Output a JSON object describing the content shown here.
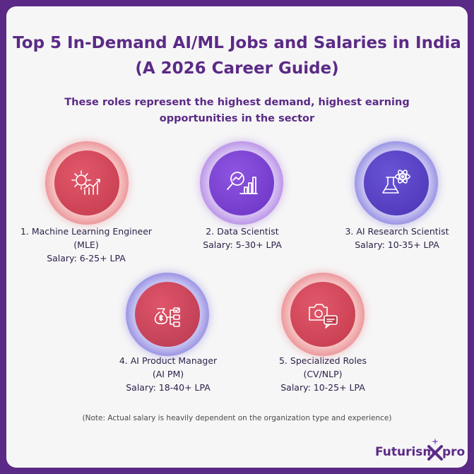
{
  "header": {
    "title_line1": "Top 5 In-Demand AI/ML Jobs and Salaries in India",
    "title_line2": "(A 2026 Career Guide)",
    "subtitle_line1": "These roles represent the highest demand, highest earning",
    "subtitle_line2": "opportunities in the sector"
  },
  "jobs": [
    {
      "title_line1": "1. Machine Learning Engineer",
      "title_line2": "(MLE)",
      "salary": "Salary: 6-25+ LPA",
      "icon": "gear-chart-icon",
      "color": "#d94a5c"
    },
    {
      "title_line1": "2. Data Scientist",
      "salary": "Salary: 5-30+ LPA",
      "icon": "magnifier-chart-icon",
      "color": "#7a42d6"
    },
    {
      "title_line1": "3. AI Research Scientist",
      "salary": "Salary: 10-35+ LPA",
      "icon": "flask-atom-icon",
      "color": "#5a44cc"
    },
    {
      "title_line1": "4. AI Product Manager",
      "title_line2": "(AI PM)",
      "salary": "Salary: 18-40+ LPA",
      "icon": "money-bag-tasks-icon",
      "color": "#d94a5c"
    },
    {
      "title_line1": "5. Specialized Roles",
      "title_line2": "(CV/NLP)",
      "salary": "Salary: 10-25+ LPA",
      "icon": "camera-chat-icon",
      "color": "#d94a5c"
    }
  ],
  "note": "(Note: Actual salary is heavily dependent on the organization type and experience)",
  "logo": {
    "word": "Futurism",
    "pro": "pro"
  }
}
